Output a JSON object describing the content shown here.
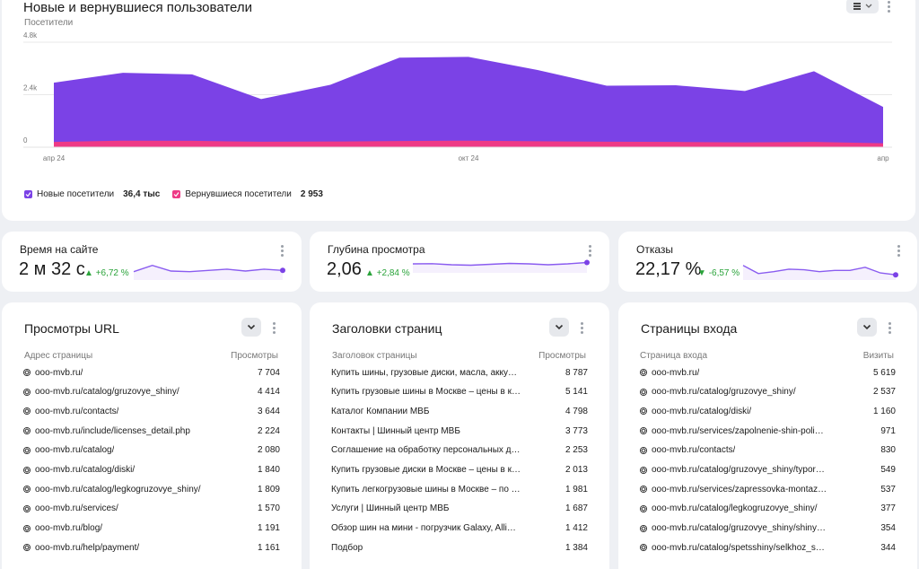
{
  "main_chart": {
    "title": "Новые и вернувшиеся пользователи",
    "subtitle": "Посетители",
    "y_ticks": [
      "4.8k",
      "2.4k",
      "0"
    ],
    "x_ticks": [
      "апр 24",
      "окт 24",
      "апр"
    ],
    "legend": [
      {
        "label": "Новые посетители",
        "value": "36,4 тыс",
        "color": "#7b42e6"
      },
      {
        "label": "Вернувшиеся посетители",
        "value": "2 953",
        "color": "#ee3a86"
      }
    ]
  },
  "chart_data": {
    "type": "area",
    "title": "Новые и вернувшиеся пользователи",
    "ylabel": "Посетители",
    "ylim": [
      0,
      4800
    ],
    "x_tick_labels": [
      "апр 24",
      "окт 24",
      "апр"
    ],
    "series": [
      {
        "name": "Новые посетители",
        "values": [
          2950,
          3400,
          3330,
          2200,
          2850,
          4090,
          4130,
          3530,
          2810,
          2830,
          2570,
          3470,
          1840
        ]
      },
      {
        "name": "Вернувшиеся посетители",
        "values": [
          240,
          300,
          290,
          250,
          260,
          280,
          300,
          270,
          250,
          240,
          220,
          240,
          180
        ]
      }
    ]
  },
  "metrics": [
    {
      "title": "Время на сайте",
      "value": "2 м 32 с",
      "arrow": "▲",
      "delta": "+6,72 %",
      "spark": [
        0.45,
        0.95,
        0.5,
        0.45,
        0.55,
        0.65,
        0.5,
        0.65,
        0.55
      ]
    },
    {
      "title": "Глубина просмотра",
      "value": "2,06",
      "arrow": "▲",
      "delta": "+2,84 %",
      "spark": [
        0.7,
        0.72,
        0.6,
        0.55,
        0.65,
        0.75,
        0.7,
        0.6,
        0.7,
        0.85
      ]
    },
    {
      "title": "Отказы",
      "value": "22,17 %",
      "arrow": "▼",
      "delta": "-6,57 %",
      "spark": [
        0.95,
        0.3,
        0.45,
        0.65,
        0.6,
        0.45,
        0.55,
        0.55,
        0.8,
        0.35,
        0.2
      ]
    }
  ],
  "tables": [
    {
      "title": "Просмотры URL",
      "col1": "Адрес страницы",
      "col2": "Просмотры",
      "rows": [
        {
          "label": "ooo-mvb.ru/",
          "value": "7 704"
        },
        {
          "label": "ooo-mvb.ru/catalog/gruzovye_shiny/",
          "value": "4 414"
        },
        {
          "label": "ooo-mvb.ru/contacts/",
          "value": "3 644"
        },
        {
          "label": "ooo-mvb.ru/include/licenses_detail.php",
          "value": "2 224"
        },
        {
          "label": "ooo-mvb.ru/catalog/",
          "value": "2 080"
        },
        {
          "label": "ooo-mvb.ru/catalog/diski/",
          "value": "1 840"
        },
        {
          "label": "ooo-mvb.ru/catalog/legkogruzovye_shiny/",
          "value": "1 809"
        },
        {
          "label": "ooo-mvb.ru/services/",
          "value": "1 570"
        },
        {
          "label": "ooo-mvb.ru/blog/",
          "value": "1 191"
        },
        {
          "label": "ooo-mvb.ru/help/payment/",
          "value": "1 161"
        }
      ]
    },
    {
      "title": "Заголовки страниц",
      "col1": "Заголовок страницы",
      "col2": "Просмотры",
      "rows": [
        {
          "label": "Купить шины, грузовые диски, масла, акку…",
          "value": "8 787"
        },
        {
          "label": "Купить грузовые шины в Москве – цены в к…",
          "value": "5 141"
        },
        {
          "label": "Каталог Компании МВБ",
          "value": "4 798"
        },
        {
          "label": "Контакты | Шинный центр МВБ",
          "value": "3 773"
        },
        {
          "label": "Соглашение на обработку персональных д…",
          "value": "2 253"
        },
        {
          "label": "Купить грузовые диски в Москве – цены в к…",
          "value": "2 013"
        },
        {
          "label": "Купить легкогрузовые шины в Москве – по …",
          "value": "1 981"
        },
        {
          "label": "Услуги | Шинный центр МВБ",
          "value": "1 687"
        },
        {
          "label": "Обзор шин на мини - погрузчик Galaxy, Alli…",
          "value": "1 412"
        },
        {
          "label": "Подбор",
          "value": "1 384"
        }
      ]
    },
    {
      "title": "Страницы входа",
      "col1": "Страница входа",
      "col2": "Визиты",
      "rows": [
        {
          "label": "ooo-mvb.ru/",
          "value": "5 619"
        },
        {
          "label": "ooo-mvb.ru/catalog/gruzovye_shiny/",
          "value": "2 537"
        },
        {
          "label": "ooo-mvb.ru/catalog/diski/",
          "value": "1 160"
        },
        {
          "label": "ooo-mvb.ru/services/zapolnenie-shin-poli…",
          "value": "971"
        },
        {
          "label": "ooo-mvb.ru/contacts/",
          "value": "830"
        },
        {
          "label": "ooo-mvb.ru/catalog/gruzovye_shiny/typor…",
          "value": "549"
        },
        {
          "label": "ooo-mvb.ru/services/zapressovka-montaz…",
          "value": "537"
        },
        {
          "label": "ooo-mvb.ru/catalog/legkogruzovye_shiny/",
          "value": "377"
        },
        {
          "label": "ooo-mvb.ru/catalog/gruzovye_shiny/shiny…",
          "value": "354"
        },
        {
          "label": "ooo-mvb.ru/catalog/spetsshiny/selkhoz_s…",
          "value": "344"
        }
      ]
    }
  ],
  "colors": {
    "accent": "#7b42e6",
    "pink": "#ee3a86",
    "positive": "#2aa33a"
  }
}
